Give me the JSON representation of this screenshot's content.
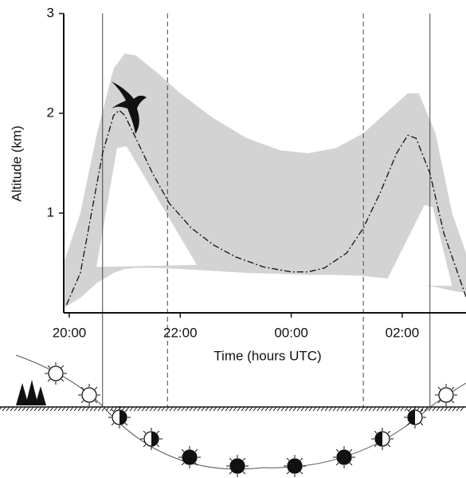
{
  "chart_data": {
    "type": "line",
    "y_label": "Altitude (km)",
    "x_label": "Time (hours UTC)",
    "xlim": [
      19.9,
      27.15
    ],
    "ylim": [
      0,
      3
    ],
    "xticks": [
      {
        "value": 20,
        "label": "20:00"
      },
      {
        "value": 22,
        "label": "22:00"
      },
      {
        "value": 24,
        "label": "00:00"
      },
      {
        "value": 26,
        "label": "02:00"
      }
    ],
    "yticks": [
      1,
      2,
      3
    ],
    "band": {
      "color": "#d3d3d3",
      "x": [
        19.9,
        20.2,
        20.5,
        20.8,
        21.0,
        21.2,
        21.6,
        22.0,
        22.6,
        23.2,
        23.8,
        24.3,
        24.8,
        25.3,
        25.8,
        26.1,
        26.3,
        26.6,
        26.9,
        27.15
      ],
      "upper": [
        0.5,
        1.0,
        1.8,
        2.45,
        2.6,
        2.58,
        2.4,
        2.2,
        1.95,
        1.75,
        1.63,
        1.6,
        1.65,
        1.8,
        2.05,
        2.2,
        2.2,
        1.8,
        1.0,
        0.6
      ],
      "lower": [
        0.05,
        0.15,
        0.3,
        0.4,
        0.44,
        0.45,
        0.45,
        0.44,
        0.42,
        0.4,
        0.39,
        0.38,
        0.38,
        0.37,
        0.34,
        0.3,
        0.28,
        0.26,
        0.22,
        0.2
      ]
    },
    "holes": [
      {
        "x": [
          20.49,
          20.86,
          21.03,
          22.3
        ],
        "y": [
          0.46,
          1.65,
          1.67,
          0.48
        ]
      },
      {
        "x": [
          25.68,
          26.4,
          26.55,
          26.9
        ],
        "y": [
          0.28,
          1.08,
          1.06,
          0.27
        ]
      }
    ],
    "series": [
      {
        "color": "#111111",
        "x": [
          19.95,
          20.2,
          20.4,
          20.6,
          20.8,
          20.9,
          21.0,
          21.2,
          21.5,
          21.8,
          22.2,
          22.6,
          23.0,
          23.5,
          24.0,
          24.3,
          24.6,
          25.0,
          25.3,
          25.6,
          25.9,
          26.1,
          26.25,
          26.5,
          26.75,
          27.0,
          27.15
        ],
        "values": [
          0.08,
          0.4,
          1.0,
          1.6,
          1.98,
          2.03,
          1.98,
          1.75,
          1.4,
          1.1,
          0.85,
          0.68,
          0.56,
          0.46,
          0.41,
          0.41,
          0.45,
          0.6,
          0.85,
          1.2,
          1.6,
          1.78,
          1.75,
          1.4,
          0.8,
          0.4,
          0.16
        ]
      }
    ],
    "solid_lines": [
      20.6,
      26.5
    ],
    "dashed_lines": [
      21.77,
      25.3
    ]
  }
}
